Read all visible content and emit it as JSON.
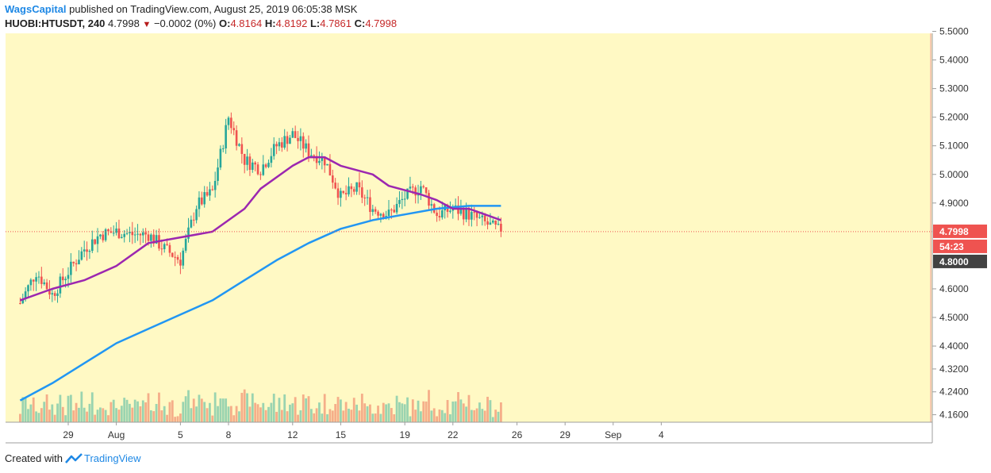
{
  "header": {
    "publisher": "WagsCapital",
    "published_text": "published on TradingView.com, August 25, 2019 06:05:38 MSK",
    "symbol": "HUOBI:HTUSDT, 240",
    "last": "4.7998",
    "change": "−0.0002 (0%)",
    "open_label": "O:",
    "open": "4.8164",
    "high_label": "H:",
    "high": "4.8192",
    "low_label": "L:",
    "low": "4.7861",
    "close_label": "C:",
    "close": "4.7998"
  },
  "footer": {
    "created_with": "Created with",
    "brand": "TradingView"
  },
  "colors": {
    "background": "#fff9c4",
    "up": "#26a69a",
    "down": "#ef5350",
    "ma_fast": "#9c27b0",
    "ma_slow": "#2196f3",
    "price_line": "#ef5350"
  },
  "chart_data": {
    "type": "candlestick",
    "y_axis": {
      "ticks": [
        "5.5000",
        "5.4000",
        "5.3000",
        "5.2000",
        "5.1000",
        "5.0000",
        "4.9000",
        "4.6000",
        "4.5000",
        "4.4000",
        "4.3200",
        "4.2400",
        "4.1600"
      ],
      "ylim": [
        4.12,
        5.51
      ]
    },
    "x_axis": {
      "ticks": [
        "29",
        "Aug",
        "5",
        "8",
        "12",
        "15",
        "19",
        "22",
        "26",
        "29",
        "Sep",
        "4"
      ]
    },
    "price_labels": {
      "last": "4.7998",
      "countdown": "54:23",
      "level": "4.8000"
    },
    "price_points": [
      {
        "date": "Jul 26",
        "price": 4.55
      },
      {
        "date": "Jul 27",
        "price": 4.66
      },
      {
        "date": "Jul 28",
        "price": 4.58
      },
      {
        "date": "Jul 29",
        "price": 4.66
      },
      {
        "date": "Jul 30",
        "price": 4.74
      },
      {
        "date": "Jul 31",
        "price": 4.79
      },
      {
        "date": "Aug 1",
        "price": 4.8
      },
      {
        "date": "Aug 2",
        "price": 4.79
      },
      {
        "date": "Aug 3",
        "price": 4.79
      },
      {
        "date": "Aug 4",
        "price": 4.74
      },
      {
        "date": "Aug 5",
        "price": 4.7
      },
      {
        "date": "Aug 6",
        "price": 4.89
      },
      {
        "date": "Aug 7",
        "price": 4.94
      },
      {
        "date": "Aug 8",
        "price": 5.2
      },
      {
        "date": "Aug 9",
        "price": 5.05
      },
      {
        "date": "Aug 10",
        "price": 5.02
      },
      {
        "date": "Aug 11",
        "price": 5.1
      },
      {
        "date": "Aug 12",
        "price": 5.14
      },
      {
        "date": "Aug 13",
        "price": 5.08
      },
      {
        "date": "Aug 14",
        "price": 5.05
      },
      {
        "date": "Aug 15",
        "price": 4.92
      },
      {
        "date": "Aug 16",
        "price": 4.95
      },
      {
        "date": "Aug 17",
        "price": 4.88
      },
      {
        "date": "Aug 18",
        "price": 4.86
      },
      {
        "date": "Aug 19",
        "price": 4.92
      },
      {
        "date": "Aug 20",
        "price": 4.96
      },
      {
        "date": "Aug 21",
        "price": 4.86
      },
      {
        "date": "Aug 22",
        "price": 4.88
      },
      {
        "date": "Aug 23",
        "price": 4.86
      },
      {
        "date": "Aug 24",
        "price": 4.83
      },
      {
        "date": "Aug 25",
        "price": 4.8
      }
    ],
    "ma_fast": [
      {
        "date": "Jul 26",
        "price": 4.56
      },
      {
        "date": "Jul 28",
        "price": 4.6
      },
      {
        "date": "Jul 30",
        "price": 4.63
      },
      {
        "date": "Aug 1",
        "price": 4.68
      },
      {
        "date": "Aug 3",
        "price": 4.76
      },
      {
        "date": "Aug 5",
        "price": 4.78
      },
      {
        "date": "Aug 7",
        "price": 4.8
      },
      {
        "date": "Aug 9",
        "price": 4.88
      },
      {
        "date": "Aug 10",
        "price": 4.95
      },
      {
        "date": "Aug 12",
        "price": 5.03
      },
      {
        "date": "Aug 13",
        "price": 5.06
      },
      {
        "date": "Aug 14",
        "price": 5.06
      },
      {
        "date": "Aug 15",
        "price": 5.03
      },
      {
        "date": "Aug 17",
        "price": 5.0
      },
      {
        "date": "Aug 18",
        "price": 4.96
      },
      {
        "date": "Aug 20",
        "price": 4.93
      },
      {
        "date": "Aug 21",
        "price": 4.91
      },
      {
        "date": "Aug 22",
        "price": 4.88
      },
      {
        "date": "Aug 23",
        "price": 4.88
      },
      {
        "date": "Aug 24",
        "price": 4.86
      },
      {
        "date": "Aug 25",
        "price": 4.84
      }
    ],
    "ma_slow": [
      {
        "date": "Jul 26",
        "price": 4.21
      },
      {
        "date": "Jul 28",
        "price": 4.27
      },
      {
        "date": "Jul 30",
        "price": 4.34
      },
      {
        "date": "Aug 1",
        "price": 4.41
      },
      {
        "date": "Aug 3",
        "price": 4.46
      },
      {
        "date": "Aug 5",
        "price": 4.51
      },
      {
        "date": "Aug 7",
        "price": 4.56
      },
      {
        "date": "Aug 9",
        "price": 4.63
      },
      {
        "date": "Aug 11",
        "price": 4.7
      },
      {
        "date": "Aug 13",
        "price": 4.76
      },
      {
        "date": "Aug 15",
        "price": 4.81
      },
      {
        "date": "Aug 17",
        "price": 4.84
      },
      {
        "date": "Aug 19",
        "price": 4.86
      },
      {
        "date": "Aug 21",
        "price": 4.88
      },
      {
        "date": "Aug 23",
        "price": 4.89
      },
      {
        "date": "Aug 25",
        "price": 4.89
      }
    ]
  }
}
